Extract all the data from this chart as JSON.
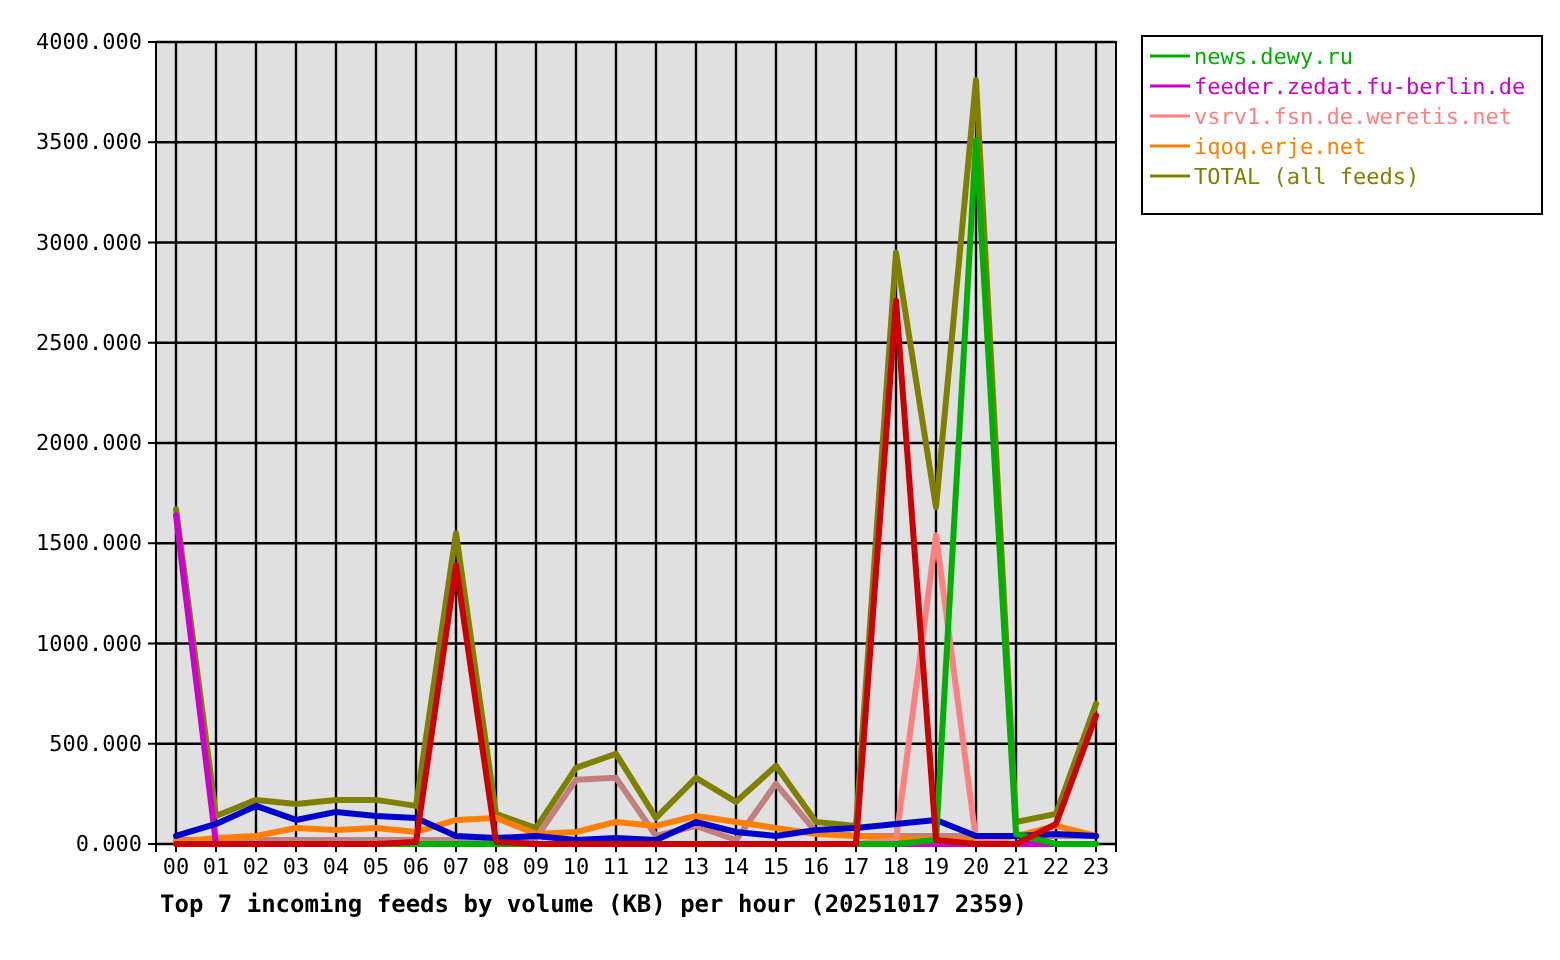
{
  "chart_data": {
    "type": "line",
    "title": "Top 7 incoming feeds by volume (KB) per hour (20251017 2359)",
    "categories": [
      "00",
      "01",
      "02",
      "03",
      "04",
      "05",
      "06",
      "07",
      "08",
      "09",
      "10",
      "11",
      "12",
      "13",
      "14",
      "15",
      "16",
      "17",
      "18",
      "19",
      "20",
      "21",
      "22",
      "23"
    ],
    "ylim": [
      0,
      4000
    ],
    "yticks": [
      {
        "value": 0,
        "label": "0.000"
      },
      {
        "value": 500,
        "label": "500.000"
      },
      {
        "value": 1000,
        "label": "1000.000"
      },
      {
        "value": 1500,
        "label": "1500.000"
      },
      {
        "value": 2000,
        "label": "2000.000"
      },
      {
        "value": 2500,
        "label": "2500.000"
      },
      {
        "value": 3000,
        "label": "3000.000"
      },
      {
        "value": 3500,
        "label": "3500.000"
      },
      {
        "value": 4000,
        "label": "4000.000"
      }
    ],
    "grid": true,
    "legend": "top right",
    "line_style": "solid",
    "series": [
      {
        "color": "#cc0000",
        "values": [
          0,
          0,
          0,
          0,
          0,
          0,
          10,
          1390,
          10,
          0,
          0,
          0,
          0,
          0,
          0,
          0,
          0,
          0,
          2710,
          20,
          0,
          0,
          100,
          640
        ]
      },
      {
        "name": "news.dewy.ru",
        "color": "#00b000",
        "values": [
          null,
          null,
          null,
          null,
          0,
          0,
          0,
          0,
          0,
          0,
          0,
          0,
          0,
          0,
          0,
          0,
          0,
          0,
          0,
          20,
          3510,
          50,
          0,
          0
        ]
      },
      {
        "color": "#0000cc",
        "values": [
          40,
          100,
          190,
          120,
          160,
          140,
          130,
          40,
          30,
          40,
          20,
          30,
          20,
          110,
          60,
          40,
          70,
          80,
          100,
          120,
          40,
          40,
          50,
          40
        ]
      },
      {
        "name": "feeder.zedat.fu-berlin.de",
        "color": "#cc00cc",
        "values": [
          1640,
          0,
          null,
          null,
          null,
          null,
          null,
          null,
          null,
          null,
          null,
          null,
          null,
          null,
          null,
          null,
          null,
          null,
          0,
          0,
          0,
          0,
          0,
          null
        ]
      },
      {
        "name": "vsrv1.fsn.de.weretis.net",
        "color": "#ff8080",
        "values": [
          null,
          null,
          null,
          null,
          null,
          null,
          null,
          null,
          null,
          null,
          null,
          null,
          null,
          null,
          null,
          null,
          0,
          0,
          20,
          1540,
          20,
          0,
          null,
          null
        ]
      },
      {
        "name": "iqoq.erje.net",
        "color": "#ff8000",
        "values": [
          10,
          30,
          40,
          80,
          70,
          80,
          60,
          120,
          130,
          50,
          60,
          110,
          90,
          140,
          110,
          80,
          50,
          40,
          30,
          20,
          20,
          40,
          90,
          40
        ]
      },
      {
        "color": "#c08080",
        "values": [
          20,
          20,
          20,
          20,
          20,
          20,
          20,
          20,
          20,
          30,
          320,
          330,
          40,
          90,
          20,
          300,
          60,
          40,
          40,
          40,
          40,
          40,
          40,
          40
        ]
      },
      {
        "name": "TOTAL (all feeds)",
        "color": "#808000",
        "values": [
          1670,
          140,
          220,
          200,
          220,
          220,
          190,
          1550,
          150,
          80,
          380,
          450,
          130,
          330,
          210,
          390,
          110,
          90,
          2950,
          1680,
          3810,
          110,
          150,
          700
        ]
      }
    ]
  }
}
